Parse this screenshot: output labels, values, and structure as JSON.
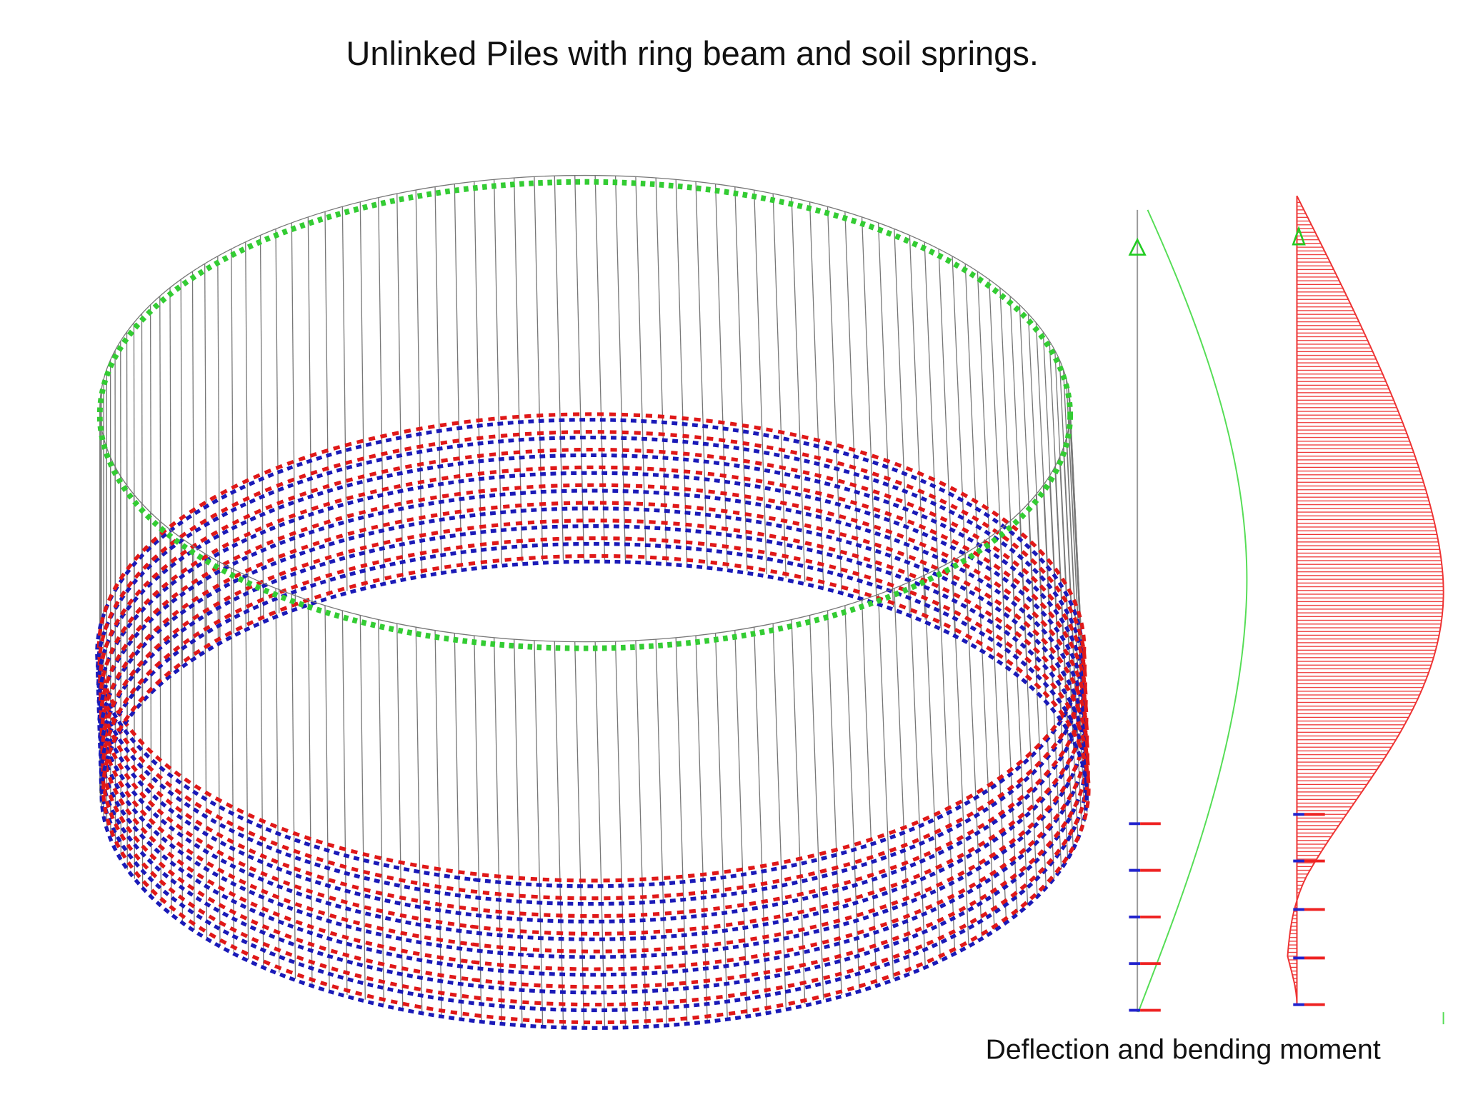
{
  "header": {
    "title": "Unlinked Piles with ring beam and soil springs."
  },
  "caption": "Deflection and bending moment"
}
